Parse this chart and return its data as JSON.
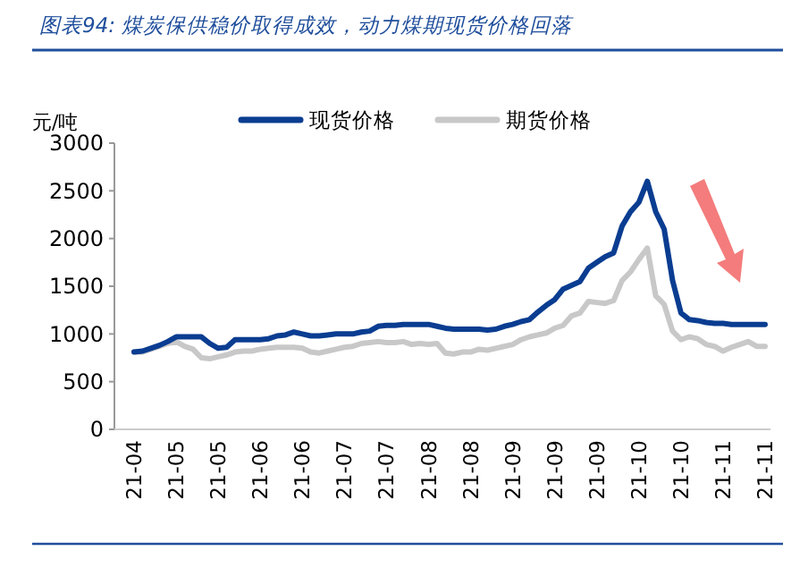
{
  "chart_data": {
    "type": "line",
    "title": "图表94: 煤炭保供稳价取得成效，动力煤期现货价格回落",
    "ylabel": "元/吨",
    "categories": [
      "21-04",
      null,
      null,
      null,
      null,
      "21-05",
      null,
      null,
      null,
      null,
      "21-05",
      null,
      null,
      null,
      null,
      "21-06",
      null,
      null,
      null,
      null,
      "21-06",
      null,
      null,
      null,
      null,
      "21-07",
      null,
      null,
      null,
      null,
      "21-07",
      null,
      null,
      null,
      null,
      "21-08",
      null,
      null,
      null,
      null,
      "21-08",
      null,
      null,
      null,
      null,
      "21-09",
      null,
      null,
      null,
      null,
      "21-09",
      null,
      null,
      null,
      null,
      "21-09",
      null,
      null,
      null,
      null,
      "21-10",
      null,
      null,
      null,
      null,
      "21-10",
      null,
      null,
      null,
      null,
      "21-11",
      null,
      null,
      null,
      null,
      "21-11"
    ],
    "series": [
      {
        "name": "现货价格",
        "color": "#0a3d91",
        "values": [
          810,
          820,
          850,
          880,
          920,
          970,
          970,
          970,
          970,
          900,
          850,
          860,
          940,
          940,
          940,
          940,
          950,
          980,
          990,
          1020,
          1000,
          980,
          980,
          990,
          1000,
          1000,
          1000,
          1020,
          1030,
          1080,
          1090,
          1090,
          1100,
          1100,
          1100,
          1100,
          1080,
          1060,
          1050,
          1050,
          1050,
          1050,
          1040,
          1050,
          1080,
          1100,
          1130,
          1150,
          1230,
          1300,
          1360,
          1470,
          1510,
          1550,
          1690,
          1750,
          1810,
          1850,
          2130,
          2280,
          2380,
          2600,
          2280,
          2100,
          1560,
          1220,
          1150,
          1140,
          1120,
          1110,
          1110,
          1100,
          1100,
          1100,
          1100,
          1100
        ]
      },
      {
        "name": "期货价格",
        "color": "#c8c8c8",
        "values": [
          810,
          810,
          840,
          870,
          900,
          920,
          870,
          840,
          750,
          740,
          760,
          780,
          810,
          820,
          820,
          840,
          850,
          860,
          860,
          860,
          850,
          810,
          800,
          820,
          840,
          860,
          870,
          900,
          910,
          920,
          910,
          910,
          920,
          890,
          900,
          890,
          900,
          800,
          790,
          810,
          810,
          840,
          830,
          850,
          870,
          890,
          940,
          970,
          990,
          1010,
          1060,
          1090,
          1190,
          1220,
          1340,
          1330,
          1320,
          1350,
          1560,
          1650,
          1780,
          1900,
          1400,
          1310,
          1030,
          940,
          970,
          950,
          890,
          870,
          820,
          860,
          890,
          920,
          870,
          870
        ]
      }
    ],
    "ylim": [
      0,
      3000
    ],
    "yticks": [
      0,
      500,
      1000,
      1500,
      2000,
      2500,
      3000
    ],
    "legend": "top",
    "line_style": "solid",
    "marker": "none",
    "grid": false
  }
}
